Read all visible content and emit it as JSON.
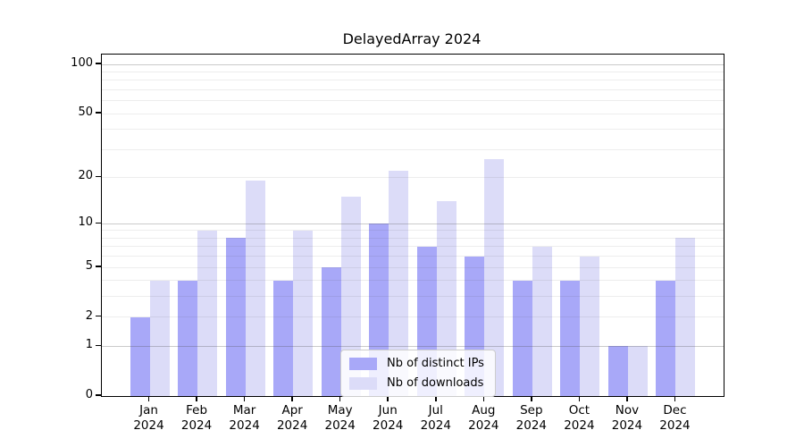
{
  "chart_data": {
    "type": "bar",
    "title": "DelayedArray 2024",
    "categories": [
      "Jan 2024",
      "Feb 2024",
      "Mar 2024",
      "Apr 2024",
      "May 2024",
      "Jun 2024",
      "Jul 2024",
      "Aug 2024",
      "Sep 2024",
      "Oct 2024",
      "Nov 2024",
      "Dec 2024"
    ],
    "category_line1": [
      "Jan",
      "Feb",
      "Mar",
      "Apr",
      "May",
      "Jun",
      "Jul",
      "Aug",
      "Sep",
      "Oct",
      "Nov",
      "Dec"
    ],
    "category_line2": "2024",
    "series": [
      {
        "name": "Nb of distinct IPs",
        "color": "#a8a8f8",
        "values": [
          2,
          4,
          8,
          4,
          5,
          10,
          7,
          6,
          4,
          4,
          1,
          4
        ]
      },
      {
        "name": "Nb of downloads",
        "color": "#dcdcf8",
        "values": [
          4,
          9,
          19,
          9,
          15,
          22,
          14,
          26,
          7,
          6,
          1,
          8
        ]
      }
    ],
    "xlabel": "",
    "ylabel": "",
    "y_axis": {
      "scale": "log1p",
      "ylim": [
        0,
        115
      ],
      "tick_labels": [
        0,
        1,
        2,
        5,
        10,
        20,
        50,
        100
      ],
      "major_gridlines": [
        1,
        10,
        100
      ],
      "minor_gridlines": [
        2,
        3,
        4,
        5,
        6,
        7,
        8,
        9,
        20,
        30,
        40,
        50,
        60,
        70,
        80,
        90
      ]
    },
    "legend": {
      "position": "inside-bottom-center",
      "framed": true
    }
  },
  "colors": {
    "background": "#ffffff",
    "bar_distinct_ips": "#a8a8f8",
    "bar_downloads": "#dcdcf8",
    "axis": "#000000",
    "grid_major": "rgba(80,80,80,0.30)",
    "grid_minor": "rgba(80,80,80,0.10)",
    "text": "#000000",
    "legend_border": "#cccccc"
  }
}
